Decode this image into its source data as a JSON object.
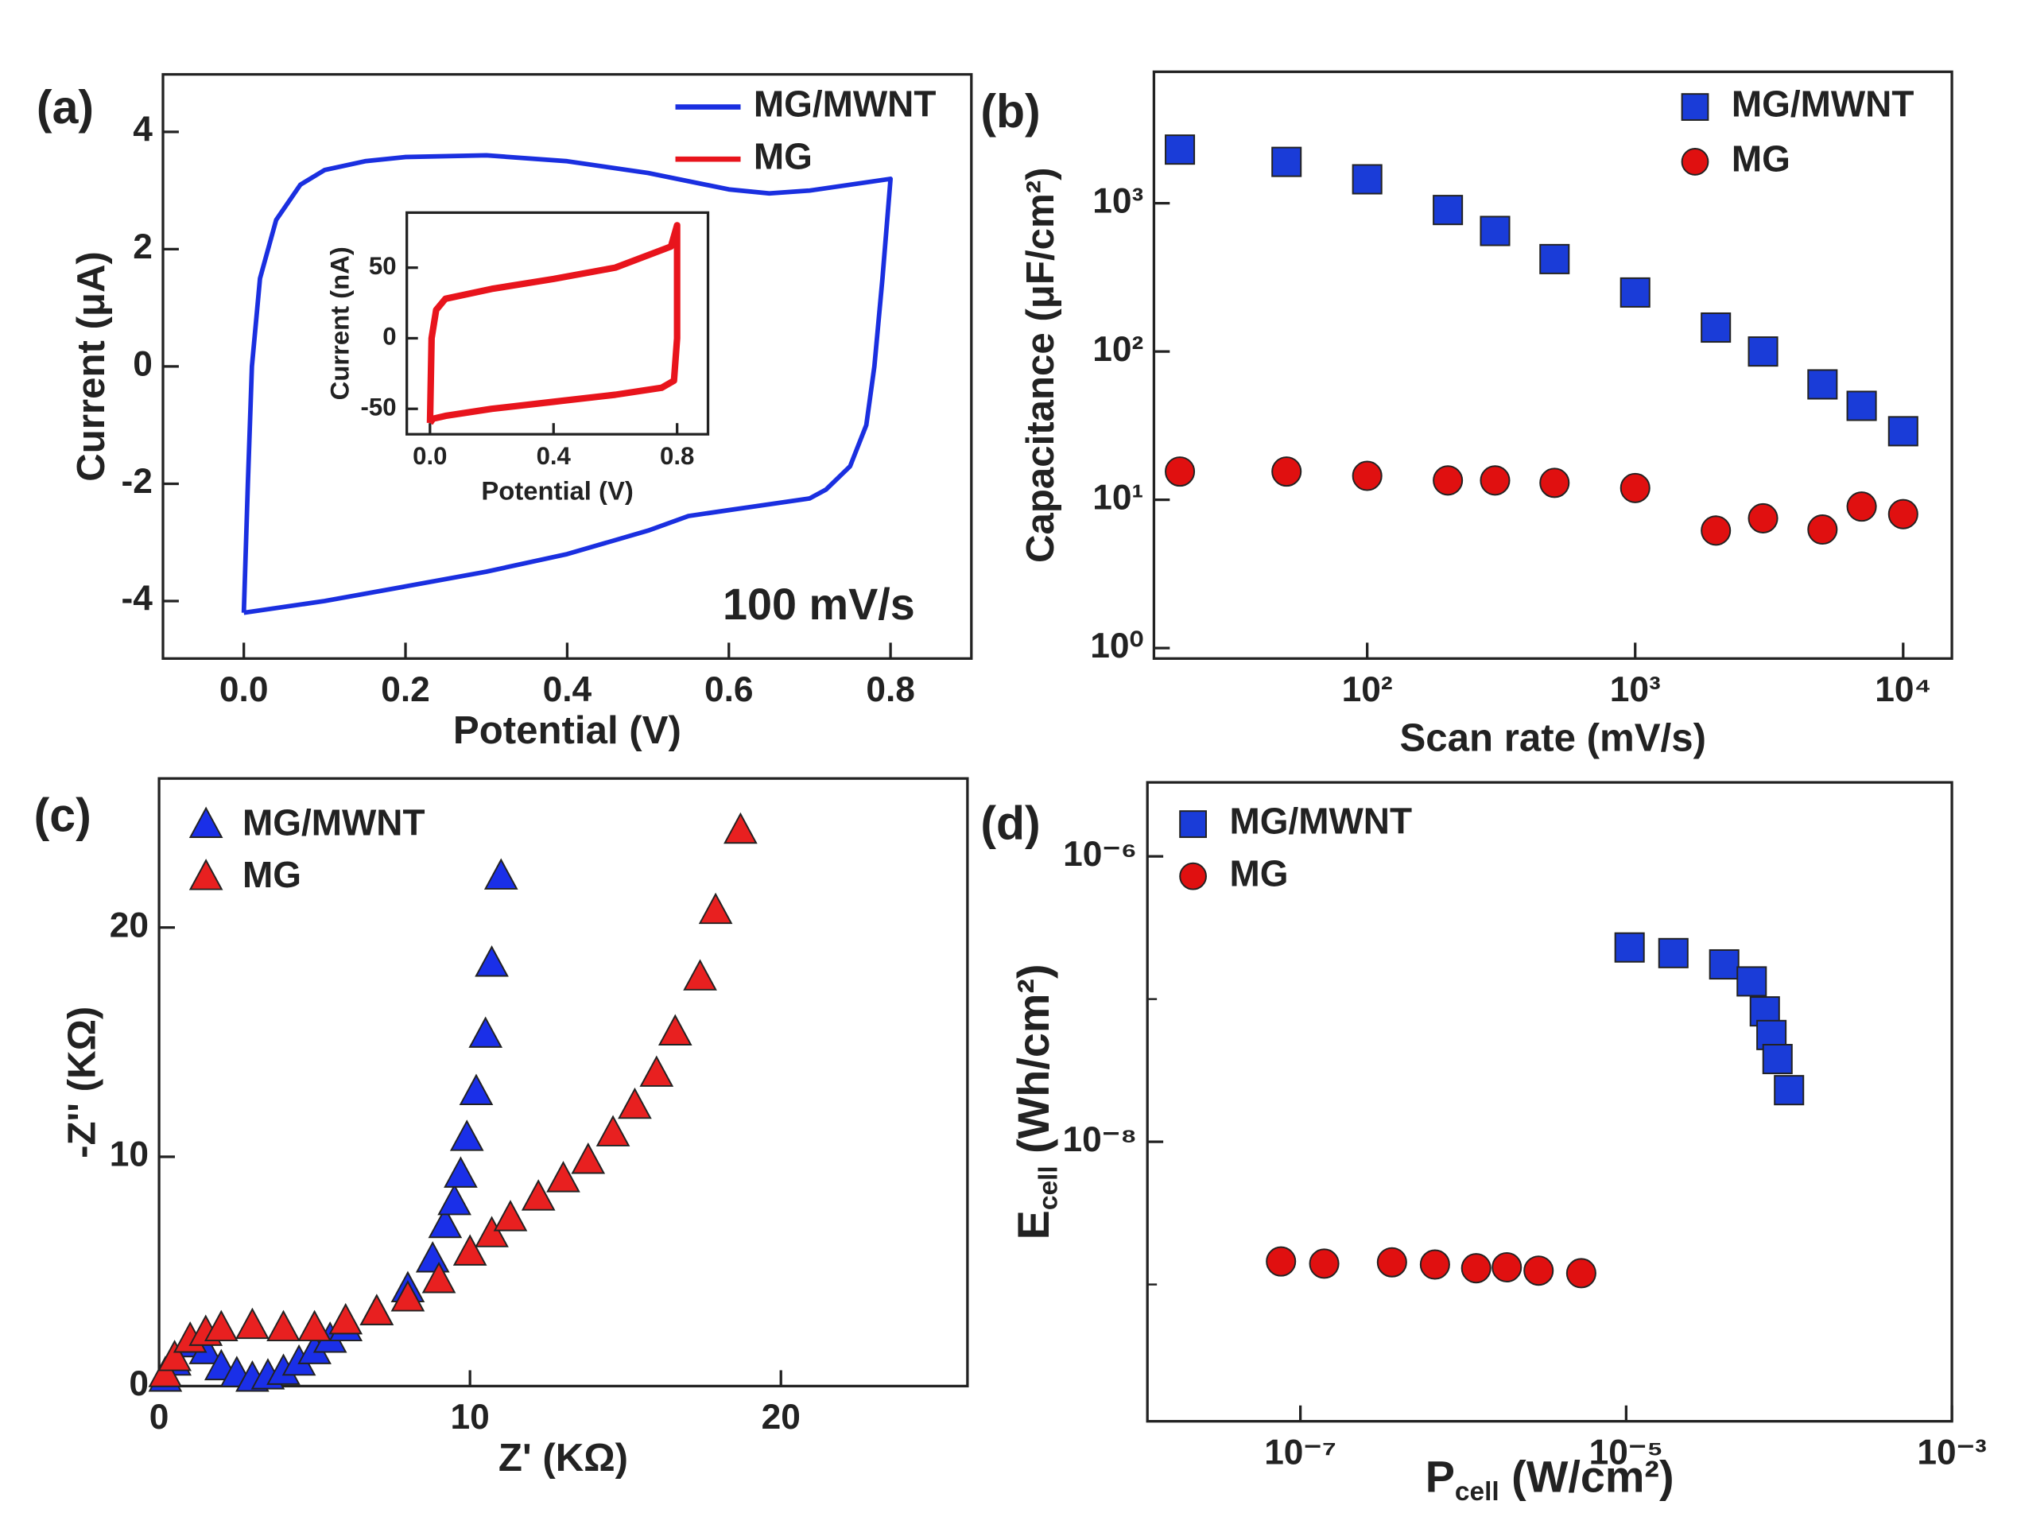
{
  "chart_data": [
    {
      "type": "line",
      "panel": "(a)",
      "annotation": "100 mV/s",
      "xlabel": "Potential (V)",
      "ylabel": "Current (μA)",
      "xlim": [
        -0.1,
        0.9
      ],
      "ylim": [
        -4.98,
        4.98
      ],
      "xticks": [
        {
          "value": 0,
          "label": "0.0"
        },
        0.2,
        0.4,
        0.6,
        0.8
      ],
      "yticks": [
        -4,
        -2,
        0,
        2,
        4
      ],
      "legend": "upper right",
      "series": [
        {
          "name": "MG/MWNT",
          "color": "#1a2fe0",
          "x": [
            0,
            0.005,
            0.01,
            0.02,
            0.04,
            0.07,
            0.1,
            0.15,
            0.2,
            0.3,
            0.4,
            0.5,
            0.6,
            0.65,
            0.7,
            0.75,
            0.8,
            0.79,
            0.78,
            0.77,
            0.75,
            0.72,
            0.7,
            0.6,
            0.55,
            0.5,
            0.4,
            0.3,
            0.2,
            0.1,
            0
          ],
          "values": [
            -4.2,
            -2,
            0,
            1.5,
            2.5,
            3.1,
            3.35,
            3.5,
            3.57,
            3.6,
            3.5,
            3.3,
            3.02,
            2.95,
            3.0,
            3.1,
            3.2,
            1.5,
            0,
            -1,
            -1.7,
            -2.1,
            -2.25,
            -2.45,
            -2.55,
            -2.8,
            -3.2,
            -3.5,
            -3.75,
            -4.0,
            -4.2
          ]
        },
        {
          "name": "MG",
          "color": "#e8141c"
        }
      ]
    },
    {
      "type": "line",
      "xlabel": "Potential (V)",
      "ylabel": "Current (nA)",
      "xlim": [
        -0.075,
        0.9
      ],
      "ylim": [
        -68,
        89
      ],
      "xticks": [
        {
          "value": 0,
          "label": "0.0"
        },
        0.4,
        0.8
      ],
      "yticks": [
        -50,
        0,
        50
      ],
      "series": [
        {
          "color": "#e8141c",
          "x": [
            0,
            0.005,
            0.02,
            0.05,
            0.2,
            0.4,
            0.6,
            0.78,
            0.8,
            0.8,
            0.79,
            0.75,
            0.6,
            0.4,
            0.2,
            0.05,
            0.01,
            0
          ],
          "values": [
            -60,
            0,
            20,
            28,
            35,
            42,
            50,
            65,
            80,
            0,
            -30,
            -35,
            -40,
            -45,
            -50,
            -55,
            -57,
            -60
          ]
        }
      ]
    },
    {
      "type": "scatter",
      "panel": "(b)",
      "xscale": "log",
      "yscale": "log",
      "xlabel": "Scan rate (mV/s)",
      "ylabel": "Capacitance (μF/cm²)",
      "xlim": [
        16,
        15200
      ],
      "ylim": [
        0.85,
        7700
      ],
      "xticks": [
        {
          "value": 100,
          "label": "10²"
        },
        {
          "value": 1000,
          "label": "10³"
        },
        {
          "value": 10000,
          "label": "10⁴"
        }
      ],
      "yticks": [
        {
          "value": 1,
          "label": "10⁰"
        },
        {
          "value": 10,
          "label": "10¹"
        },
        {
          "value": 100,
          "label": "10²"
        },
        {
          "value": 1000,
          "label": "10³"
        }
      ],
      "legend": "upper right",
      "series": [
        {
          "name": "MG/MWNT",
          "color": "#1a3cd8",
          "marker": "square",
          "x": [
            20,
            50,
            100,
            200,
            300,
            500,
            1000,
            2000,
            3000,
            5000,
            7000,
            10000
          ],
          "values": [
            2300,
            1900,
            1450,
            900,
            650,
            420,
            250,
            145,
            100,
            60,
            43,
            29
          ]
        },
        {
          "name": "MG",
          "color": "#e01010",
          "marker": "circle",
          "x": [
            20,
            50,
            100,
            200,
            300,
            500,
            1000,
            2000,
            3000,
            5000,
            7000,
            10000
          ],
          "values": [
            15.5,
            15.5,
            14.5,
            13.5,
            13.5,
            13,
            12,
            6.2,
            7.5,
            6.3,
            9,
            8
          ]
        }
      ]
    },
    {
      "type": "scatter",
      "panel": "(c)",
      "xlabel": "Z' (KΩ)",
      "ylabel": "-Z'' (KΩ)",
      "xlim": [
        0,
        26
      ],
      "ylim": [
        0,
        26.5
      ],
      "xticks": [
        0,
        10,
        20
      ],
      "yticks": [
        0,
        10,
        20
      ],
      "legend": "upper left",
      "series": [
        {
          "name": "MG/MWNT",
          "color": "#1a2fe8",
          "marker": "triangle",
          "x": [
            0.2,
            0.5,
            1,
            1.5,
            2,
            2.5,
            3,
            3.5,
            4,
            4.5,
            5,
            5.5,
            6,
            7,
            8,
            8.8,
            9.2,
            9.5,
            9.7,
            9.9,
            10.2,
            10.5,
            10.7,
            11
          ],
          "values": [
            0.3,
            1,
            1.8,
            1.5,
            0.8,
            0.5,
            0.3,
            0.4,
            0.6,
            1,
            1.5,
            2,
            2.5,
            3.2,
            4.2,
            5.5,
            7,
            8,
            9.2,
            10.8,
            12.8,
            15.3,
            18.4,
            22.2
          ]
        },
        {
          "name": "MG",
          "color": "#e82020",
          "marker": "triangle",
          "x": [
            0.2,
            0.5,
            1,
            1.5,
            2,
            3,
            4,
            5,
            6,
            7,
            8,
            9,
            10,
            10.7,
            11.3,
            12.2,
            13,
            13.8,
            14.6,
            15.3,
            16,
            16.6,
            17.4,
            17.9,
            18.7
          ],
          "values": [
            0.5,
            1.2,
            2,
            2.3,
            2.5,
            2.6,
            2.5,
            2.5,
            2.8,
            3.2,
            3.8,
            4.6,
            5.8,
            6.6,
            7.3,
            8.2,
            9,
            9.8,
            11,
            12.2,
            13.6,
            15.4,
            17.8,
            20.7,
            24.2
          ]
        }
      ]
    },
    {
      "type": "scatter",
      "panel": "(d)",
      "xscale": "log",
      "yscale": "log",
      "xlabel": {
        "text": "P",
        "sub": "cell",
        "unit": " (W/cm²)"
      },
      "ylabel": {
        "text": "E",
        "sub": "cell",
        "unit": " (Wh/cm²)"
      },
      "xlim": [
        1.15e-08,
        0.001
      ],
      "ylim": [
        1.1e-10,
        3.3e-06
      ],
      "xticks": [
        {
          "value": 1e-07,
          "label": "10⁻⁷"
        },
        {
          "value": 1e-05,
          "label": "10⁻⁵"
        },
        {
          "value": 0.001,
          "label": "10⁻³"
        }
      ],
      "yticks": [
        {
          "value": 1e-08,
          "label": "10⁻⁸"
        },
        {
          "value": 1e-06,
          "label": "10⁻⁶"
        }
      ],
      "yminorticks": [
        1e-09,
        1e-07
      ],
      "legend": "upper left",
      "series": [
        {
          "name": "MG/MWNT",
          "color": "#1a3cd8",
          "marker": "square",
          "x": [
            1.05e-05,
            1.95e-05,
            4e-05,
            5.9e-05,
            7.1e-05,
            7.8e-05,
            8.5e-05,
            0.0001
          ],
          "values": [
            2.3e-07,
            2.1e-07,
            1.75e-07,
            1.33e-07,
            8.2e-08,
            5.6e-08,
            3.8e-08,
            2.3e-08
          ]
        },
        {
          "name": "MG",
          "color": "#e01010",
          "marker": "circle",
          "x": [
            7.6e-08,
            1.4e-07,
            3.65e-07,
            6.7e-07,
            1.2e-06,
            1.85e-06,
            2.9e-06,
            5.3e-06
          ],
          "values": [
            1.45e-09,
            1.4e-09,
            1.43e-09,
            1.38e-09,
            1.3e-09,
            1.32e-09,
            1.25e-09,
            1.2e-09
          ]
        }
      ]
    }
  ]
}
